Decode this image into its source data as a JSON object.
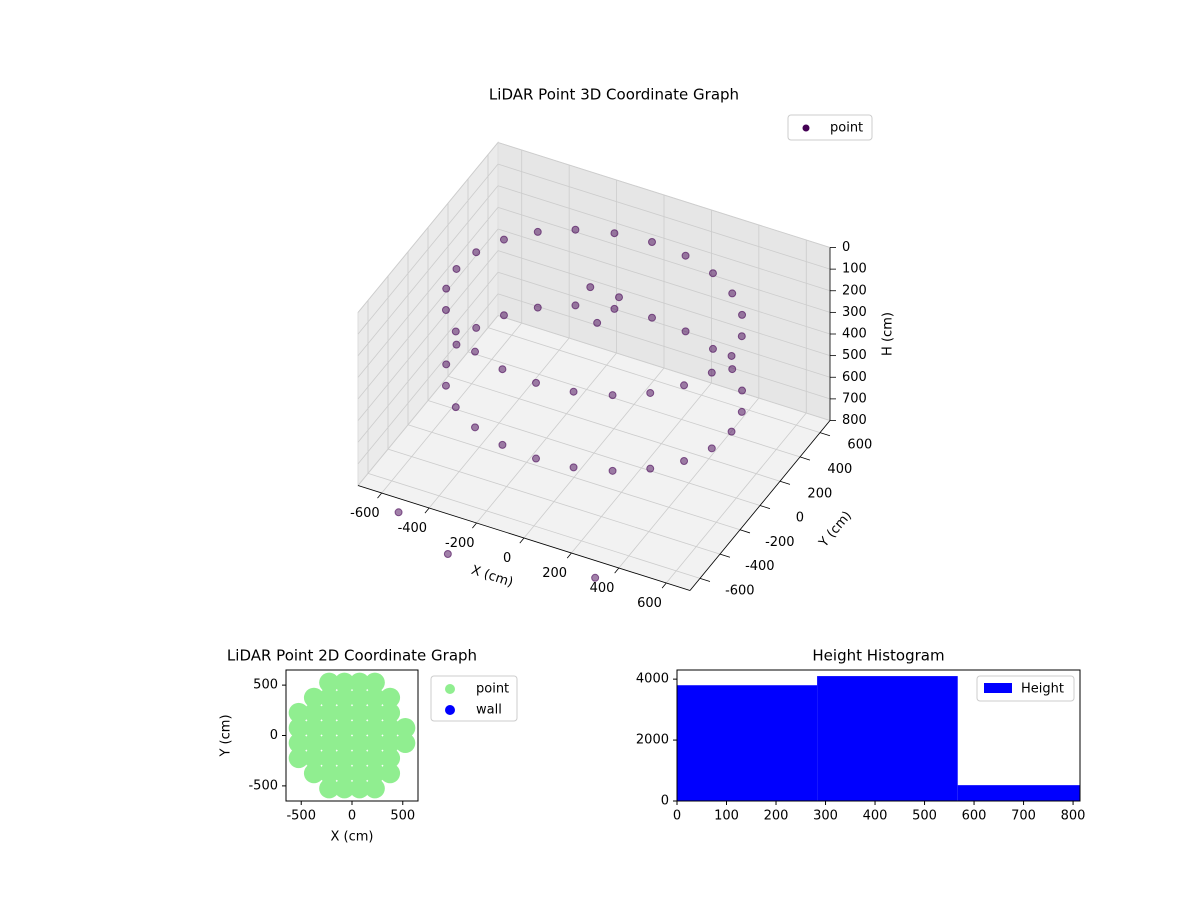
{
  "chart_data": [
    {
      "type": "scatter3d",
      "title": "LiDAR Point 3D Coordinate Graph",
      "xlabel": "X (cm)",
      "ylabel": "Y (cm)",
      "zlabel": "H (cm)",
      "xlim": [
        -700,
        700
      ],
      "ylim": [
        -700,
        700
      ],
      "zlim": [
        800,
        0
      ],
      "xticks": [
        -600,
        -400,
        -200,
        0,
        200,
        400,
        600
      ],
      "yticks": [
        -600,
        -400,
        -200,
        0,
        200,
        400,
        600
      ],
      "zticks": [
        0,
        100,
        200,
        300,
        400,
        500,
        600,
        700,
        800
      ],
      "grid": true,
      "legend": "upper right",
      "series": [
        {
          "name": "point",
          "color": "#440154",
          "x": [
            0,
            -150,
            -290,
            -410,
            -502,
            -560,
            -580,
            -560,
            -502,
            -410,
            -290,
            -150,
            0,
            150,
            290,
            410,
            502,
            560,
            580,
            560,
            502,
            410,
            290,
            150,
            0,
            -150,
            -290,
            -410,
            -502,
            -560,
            -580,
            -560,
            -502,
            -410,
            -290,
            -150,
            0,
            150,
            290,
            410,
            502,
            560,
            580,
            560,
            502,
            410,
            290,
            150,
            -100,
            0,
            -50,
            -550,
            -300,
            300
          ],
          "y": [
            580,
            560,
            502,
            410,
            290,
            150,
            0,
            -150,
            -290,
            -410,
            -502,
            -560,
            -580,
            -560,
            -502,
            -410,
            -290,
            -150,
            0,
            150,
            290,
            410,
            502,
            560,
            580,
            560,
            502,
            410,
            290,
            150,
            0,
            -150,
            -290,
            -410,
            -502,
            -560,
            -580,
            -560,
            -502,
            -410,
            -290,
            -150,
            0,
            150,
            290,
            410,
            502,
            560,
            200,
            250,
            150,
            -650,
            -750,
            -700
          ],
          "z": [
            150,
            150,
            150,
            150,
            150,
            150,
            150,
            150,
            150,
            150,
            150,
            150,
            150,
            150,
            150,
            150,
            150,
            150,
            150,
            150,
            150,
            150,
            150,
            150,
            500,
            500,
            500,
            500,
            500,
            500,
            500,
            500,
            500,
            500,
            500,
            500,
            500,
            500,
            500,
            500,
            500,
            500,
            500,
            500,
            500,
            500,
            500,
            500,
            180,
            220,
            300,
            900,
            950,
            880
          ]
        }
      ]
    },
    {
      "type": "scatter",
      "title": "LiDAR Point 2D Coordinate Graph",
      "xlabel": "X (cm)",
      "ylabel": "Y (cm)",
      "xlim": [
        -650,
        650
      ],
      "ylim": [
        -650,
        650
      ],
      "xticks": [
        -500,
        0,
        500
      ],
      "yticks": [
        -500,
        0,
        500
      ],
      "legend": "outside right",
      "series": [
        {
          "name": "point",
          "color": "#90ee90",
          "x": [
            -225,
            -75,
            75,
            225,
            -375,
            -225,
            -75,
            75,
            225,
            375,
            -525,
            -375,
            -225,
            -75,
            75,
            225,
            375,
            -525,
            -375,
            -225,
            -75,
            75,
            225,
            375,
            525,
            -525,
            -375,
            -225,
            -75,
            75,
            225,
            375,
            525,
            -525,
            -375,
            -225,
            -75,
            75,
            225,
            375,
            -375,
            -225,
            -75,
            75,
            225,
            375,
            -225,
            -75,
            75,
            225
          ],
          "y": [
            525,
            525,
            525,
            525,
            375,
            375,
            375,
            375,
            375,
            375,
            225,
            225,
            225,
            225,
            225,
            225,
            225,
            75,
            75,
            75,
            75,
            75,
            75,
            75,
            75,
            -75,
            -75,
            -75,
            -75,
            -75,
            -75,
            -75,
            -75,
            -225,
            -225,
            -225,
            -225,
            -225,
            -225,
            -225,
            -375,
            -375,
            -375,
            -375,
            -375,
            -375,
            -525,
            -525,
            -525,
            -525
          ]
        },
        {
          "name": "wall",
          "color": "#0000ff",
          "x": [],
          "y": []
        }
      ]
    },
    {
      "type": "histogram",
      "title": "Height Histogram",
      "xlim": [
        0,
        814
      ],
      "ylim": [
        0,
        4300
      ],
      "xticks": [
        0,
        100,
        200,
        300,
        400,
        500,
        600,
        700,
        800
      ],
      "yticks": [
        0,
        2000,
        4000
      ],
      "legend": "upper right",
      "series": [
        {
          "name": "Height",
          "color": "#0000ff",
          "bins": [
            0,
            283,
            567,
            814
          ],
          "values": [
            3800,
            4100,
            520
          ]
        }
      ]
    }
  ]
}
